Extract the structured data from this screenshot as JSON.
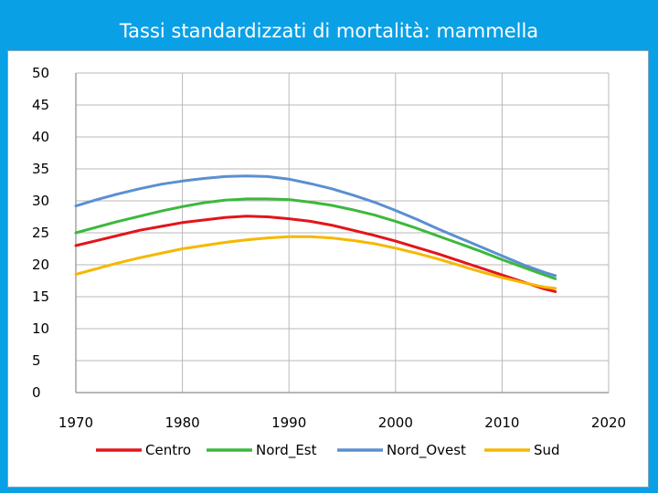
{
  "slide": {
    "title": "Tassi standardizzati di mortalità: mammella"
  },
  "chart_data": {
    "type": "line",
    "title": "",
    "xlabel": "",
    "ylabel": "",
    "xlim": [
      1970,
      2020
    ],
    "ylim": [
      0,
      50
    ],
    "xticks": [
      1970,
      1980,
      1990,
      2000,
      2010,
      2020
    ],
    "yticks": [
      0,
      5,
      10,
      15,
      20,
      25,
      30,
      35,
      40,
      45,
      50
    ],
    "grid": true,
    "legend_position": "bottom",
    "x": [
      1970,
      1972,
      1974,
      1976,
      1978,
      1980,
      1982,
      1984,
      1986,
      1988,
      1990,
      1992,
      1994,
      1996,
      1998,
      2000,
      2002,
      2004,
      2006,
      2008,
      2010,
      2012,
      2014,
      2015
    ],
    "series": [
      {
        "name": "Centro",
        "color": "#e3141b",
        "values": [
          23.0,
          23.8,
          24.6,
          25.4,
          26.0,
          26.6,
          27.0,
          27.4,
          27.6,
          27.5,
          27.2,
          26.8,
          26.2,
          25.4,
          24.6,
          23.7,
          22.7,
          21.7,
          20.6,
          19.5,
          18.4,
          17.3,
          16.2,
          15.8
        ]
      },
      {
        "name": "Nord_Est",
        "color": "#3cb83c",
        "values": [
          25.0,
          25.9,
          26.8,
          27.6,
          28.4,
          29.1,
          29.7,
          30.1,
          30.3,
          30.3,
          30.2,
          29.8,
          29.3,
          28.6,
          27.8,
          26.8,
          25.7,
          24.5,
          23.3,
          22.1,
          20.8,
          19.6,
          18.4,
          17.8
        ]
      },
      {
        "name": "Nord_Ovest",
        "color": "#5b8fd0",
        "values": [
          29.2,
          30.2,
          31.1,
          31.9,
          32.6,
          33.1,
          33.5,
          33.8,
          33.9,
          33.8,
          33.4,
          32.7,
          31.9,
          30.9,
          29.8,
          28.5,
          27.1,
          25.6,
          24.2,
          22.8,
          21.4,
          20.0,
          18.8,
          18.3
        ]
      },
      {
        "name": "Sud",
        "color": "#f5b800",
        "values": [
          18.5,
          19.4,
          20.3,
          21.1,
          21.8,
          22.5,
          23.0,
          23.5,
          23.9,
          24.2,
          24.4,
          24.4,
          24.2,
          23.8,
          23.3,
          22.6,
          21.8,
          20.9,
          19.9,
          18.9,
          18.0,
          17.2,
          16.5,
          16.3
        ]
      }
    ]
  }
}
